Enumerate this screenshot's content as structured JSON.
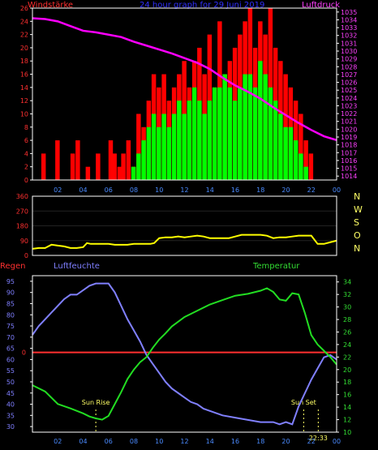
{
  "header": {
    "left_title": "Windstärke",
    "center_title": "24 hour graph for   29 Juni 2019",
    "right_title": "Luftdruck"
  },
  "colors": {
    "background": "#000000",
    "frame": "#ffffff",
    "wind_gust": "#ff0000",
    "wind_avg": "#00ff00",
    "pressure": "#ff00ff",
    "direction": "#ffff00",
    "humidity": "#8080ff",
    "temperature": "#22dd22",
    "rain": "#ff3030",
    "tick_left": "#ff3030",
    "tick_right": "#ff40ff",
    "tick_temp": "#33dd33",
    "tick_hum": "#7f7fff",
    "x_axis": "#4b8bff",
    "title_blue": "#3030ff",
    "markers": "#ffff66"
  },
  "x_ticks": [
    "02",
    "04",
    "06",
    "08",
    "10",
    "12",
    "14",
    "16",
    "18",
    "20",
    "22",
    "00"
  ],
  "chart_data": [
    {
      "type": "bar",
      "name": "wind-pressure",
      "left_axis": {
        "label": "Windstärke",
        "ylim": [
          0,
          26
        ],
        "ticks": [
          "0",
          "2",
          "4",
          "6",
          "8",
          "10",
          "12",
          "14",
          "16",
          "18",
          "20",
          "22",
          "24",
          "26"
        ]
      },
      "right_axis": {
        "label": "Luftdruck",
        "ylim": [
          1013.5,
          1035.5
        ],
        "ticks": [
          "1014",
          "1015",
          "1016",
          "1017",
          "1018",
          "1019",
          "1020",
          "1021",
          "1022",
          "1023",
          "1024",
          "1025",
          "1026",
          "1027",
          "1028",
          "1029",
          "1030",
          "1031",
          "1032",
          "1033",
          "1034",
          "1035"
        ]
      },
      "x_range_hours": [
        0,
        24
      ],
      "wind_bars": {
        "hours": [
          0.0,
          0.7,
          1.2,
          1.8,
          2.3,
          3.0,
          3.4,
          4.2,
          5.0,
          5.5,
          6.0,
          6.3,
          6.7,
          7.0,
          7.4,
          7.8,
          8.2,
          8.6,
          9.0,
          9.4,
          9.8,
          10.2,
          10.6,
          11.0,
          11.4,
          11.8,
          12.2,
          12.6,
          13.0,
          13.4,
          13.8,
          14.2,
          14.6,
          15.0,
          15.4,
          15.8,
          16.2,
          16.6,
          17.0,
          17.4,
          17.8,
          18.2,
          18.6,
          19.0,
          19.4,
          19.8,
          20.2,
          20.6,
          21.0,
          21.4,
          21.8,
          22.2
        ],
        "gust": [
          0,
          4,
          0,
          6,
          0,
          4,
          6,
          2,
          4,
          0,
          6,
          4,
          2,
          4,
          6,
          2,
          10,
          8,
          12,
          16,
          14,
          16,
          12,
          14,
          16,
          18,
          14,
          18,
          20,
          16,
          22,
          14,
          24,
          16,
          18,
          20,
          22,
          24,
          26,
          20,
          24,
          22,
          26,
          20,
          18,
          16,
          14,
          12,
          10,
          6,
          4,
          0
        ],
        "avg": [
          0,
          0,
          0,
          0,
          0,
          0,
          0,
          0,
          0,
          0,
          0,
          0,
          0,
          0,
          0,
          2,
          4,
          6,
          8,
          10,
          8,
          10,
          8,
          10,
          12,
          10,
          12,
          14,
          12,
          10,
          12,
          14,
          14,
          16,
          14,
          12,
          14,
          16,
          16,
          14,
          18,
          16,
          14,
          12,
          10,
          8,
          8,
          6,
          4,
          2,
          0,
          0
        ]
      },
      "pressure": {
        "hours": [
          0,
          1,
          2,
          3,
          4,
          5,
          6,
          7,
          8,
          9,
          10,
          11,
          12,
          13,
          14,
          15,
          16,
          17,
          18,
          19,
          20,
          21,
          22,
          23,
          24
        ],
        "values": [
          1034.2,
          1034.1,
          1033.8,
          1033.2,
          1032.6,
          1032.4,
          1032.1,
          1031.8,
          1031.2,
          1030.7,
          1030.2,
          1029.7,
          1029.1,
          1028.5,
          1027.7,
          1026.6,
          1025.6,
          1024.8,
          1023.9,
          1022.8,
          1021.8,
          1020.8,
          1019.9,
          1019.1,
          1018.6
        ]
      }
    },
    {
      "type": "line",
      "name": "wind-direction",
      "left_axis": {
        "ylim": [
          0,
          360
        ],
        "ticks": [
          "0",
          "90",
          "180",
          "270",
          "360"
        ]
      },
      "right_axis_labels": [
        "N",
        "W",
        "S",
        "O",
        "N"
      ],
      "series": [
        {
          "hours": [
            0,
            0.5,
            1,
            1.5,
            2,
            2.5,
            3,
            3.5,
            4,
            4.3,
            4.6,
            5,
            5.5,
            6,
            6.5,
            7,
            7.5,
            8,
            8.5,
            9,
            9.3,
            9.6,
            10,
            10.5,
            11,
            11.5,
            12,
            12.5,
            13,
            13.5,
            14,
            14.5,
            15,
            15.5,
            16,
            16.5,
            17,
            17.5,
            18,
            18.5,
            19,
            19.5,
            20,
            20.5,
            21,
            21.5,
            22,
            22.5,
            23,
            23.5,
            24
          ],
          "values": [
            40,
            45,
            45,
            65,
            60,
            55,
            45,
            45,
            50,
            75,
            70,
            70,
            70,
            70,
            65,
            65,
            65,
            70,
            70,
            70,
            70,
            75,
            105,
            110,
            110,
            115,
            110,
            115,
            120,
            115,
            105,
            105,
            105,
            105,
            115,
            125,
            125,
            125,
            125,
            120,
            105,
            110,
            110,
            115,
            120,
            120,
            120,
            70,
            70,
            80,
            90
          ]
        }
      ]
    },
    {
      "type": "line",
      "name": "humidity-temperature",
      "labels": {
        "rain": "Regen",
        "humidity": "Luftfeuchte",
        "temperature": "Temperatur"
      },
      "rain_value_label": "0",
      "rain_value": 0,
      "left_axis": {
        "label": "Luftfeuchte",
        "ylim": [
          27.5,
          97.5
        ],
        "ticks": [
          "30",
          "35",
          "40",
          "45",
          "50",
          "55",
          "60",
          "65",
          "70",
          "75",
          "80",
          "85",
          "90",
          "95"
        ]
      },
      "right_axis": {
        "label": "Temperatur",
        "ylim": [
          10,
          35
        ],
        "ticks": [
          "10",
          "12",
          "14",
          "16",
          "18",
          "20",
          "22",
          "24",
          "26",
          "28",
          "30",
          "32",
          "34"
        ]
      },
      "annotations": {
        "sunrise_label": "Sun Rise",
        "sunrise_hour": 5.0,
        "sunset_label": "Sun Set",
        "sunset_hour": 21.4,
        "time_marker_label": "22:33",
        "time_marker_hour": 22.55
      },
      "humidity": {
        "hours": [
          0,
          0.5,
          1,
          1.5,
          2,
          2.5,
          3,
          3.5,
          4,
          4.5,
          5,
          5.5,
          6,
          6.5,
          7,
          7.5,
          8,
          8.5,
          9,
          9.5,
          10,
          10.5,
          11,
          11.5,
          12,
          12.5,
          13,
          13.5,
          14,
          15,
          16,
          17,
          18,
          19,
          19.5,
          20,
          20.5,
          21,
          21.5,
          22,
          22.5,
          23,
          23.5,
          24
        ],
        "values": [
          71,
          75,
          78,
          81,
          84,
          87,
          89,
          89,
          91,
          93,
          94,
          94,
          94,
          90,
          84,
          78,
          73,
          68,
          62,
          58,
          54,
          50,
          47,
          45,
          43,
          41,
          40,
          38,
          37,
          35,
          34,
          33,
          32,
          32,
          31,
          32,
          31,
          39,
          45,
          51,
          56,
          61,
          62,
          60
        ]
      },
      "temperature": {
        "hours": [
          0,
          1,
          2,
          3,
          4,
          4.5,
          5,
          5.5,
          6,
          6.5,
          7,
          7.5,
          8,
          8.5,
          9,
          9.5,
          10,
          10.5,
          11,
          12,
          13,
          14,
          15,
          16,
          17,
          18,
          18.5,
          19,
          19.5,
          20,
          20.5,
          21,
          21.5,
          22,
          22.5,
          23,
          23.5,
          24
        ],
        "values": [
          17.5,
          16.5,
          14.5,
          13.8,
          13.0,
          12.5,
          12.2,
          12.0,
          12.6,
          14.5,
          16.4,
          18.5,
          20.0,
          21.2,
          22.0,
          23.5,
          24.8,
          25.8,
          26.9,
          28.4,
          29.4,
          30.4,
          31.1,
          31.8,
          32.1,
          32.6,
          33.0,
          32.4,
          31.2,
          31.0,
          32.2,
          32.0,
          29.0,
          25.5,
          24.0,
          23.0,
          22.0,
          20.8
        ]
      }
    }
  ]
}
